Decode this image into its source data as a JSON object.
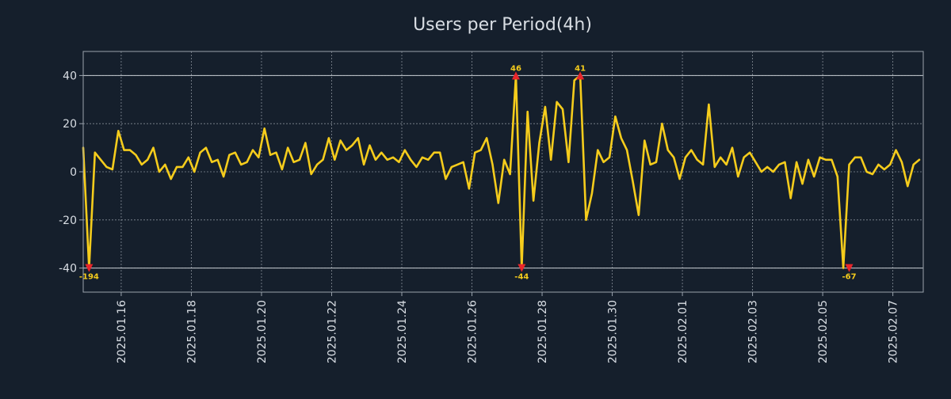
{
  "chart_data": {
    "type": "line",
    "title": "Users per Period(4h)",
    "xlabel": "",
    "ylabel": "",
    "ylim": [
      -50,
      50
    ],
    "y_ticks": [
      -40,
      -20,
      0,
      20,
      40
    ],
    "y_tick_labels": [
      "-40",
      "-20",
      "0",
      "20",
      "40"
    ],
    "x_range_days": [
      0,
      23.95
    ],
    "x_tick_positions_days": [
      1.083,
      3.083,
      5.083,
      7.083,
      9.083,
      11.083,
      13.083,
      15.083,
      17.083,
      19.083,
      21.083,
      23.083
    ],
    "x_tick_labels": [
      "2025.01.16",
      "2025.01.18",
      "2025.01.20",
      "2025.01.22",
      "2025.01.24",
      "2025.01.26",
      "2025.01.28",
      "2025.01.30",
      "2025.02.01",
      "2025.02.03",
      "2025.02.05",
      "2025.02.07"
    ],
    "grid": true,
    "reference_lines": [
      -40,
      40
    ],
    "series": [
      {
        "name": "Users",
        "color": "#f5cc1c",
        "x_start_day": 0,
        "step_days": 0.1667,
        "values": [
          10,
          -40,
          8,
          5,
          2,
          1,
          17,
          9,
          9,
          7,
          3,
          5,
          10,
          0,
          3,
          -3,
          2,
          2,
          6,
          0,
          8,
          10,
          4,
          5,
          -2,
          7,
          8,
          3,
          4,
          9,
          6,
          18,
          7,
          8,
          1,
          10,
          4,
          5,
          12,
          -1,
          3,
          5,
          14,
          5,
          13,
          9,
          11,
          14,
          3,
          11,
          5,
          8,
          5,
          6,
          4,
          9,
          5,
          2,
          6,
          5,
          8,
          8,
          -3,
          2,
          3,
          4,
          -7,
          8,
          9,
          14,
          3,
          -13,
          5,
          -1,
          40,
          -40,
          25,
          -12,
          12,
          27,
          5,
          29,
          26,
          4,
          38,
          40,
          -20,
          -9,
          9,
          4,
          6,
          23,
          14,
          9,
          -4,
          -18,
          13,
          3,
          4,
          20,
          9,
          6,
          -3,
          6,
          9,
          5,
          3,
          28,
          2,
          6,
          3,
          10,
          -2,
          6,
          8,
          4,
          0,
          2,
          0,
          3,
          4,
          -11,
          4,
          -5,
          5,
          -2,
          6,
          5,
          5,
          -2,
          -40,
          3,
          6,
          6,
          0,
          -1,
          3,
          1,
          3,
          9,
          4,
          -6,
          3,
          5
        ]
      }
    ],
    "annotations": [
      {
        "label": "-194",
        "x_index": 1,
        "y": -40,
        "marker": "down"
      },
      {
        "label": "46",
        "x_index": 74,
        "y": 40,
        "marker": "up"
      },
      {
        "label": "-44",
        "x_index": 75,
        "y": -40,
        "marker": "down"
      },
      {
        "label": "41",
        "x_index": 85,
        "y": 40,
        "marker": "up"
      },
      {
        "label": "-67",
        "x_index": 131,
        "y": -40,
        "marker": "down"
      }
    ],
    "colors": {
      "background": "#151f2c",
      "text": "#d8dde3",
      "axis": "#9aa3ad",
      "grid": "#a9b1ba",
      "refline": "#c8cdd3",
      "line": "#f5cc1c",
      "marker": "#e8262b",
      "annotation": "#f5cc1c"
    }
  }
}
